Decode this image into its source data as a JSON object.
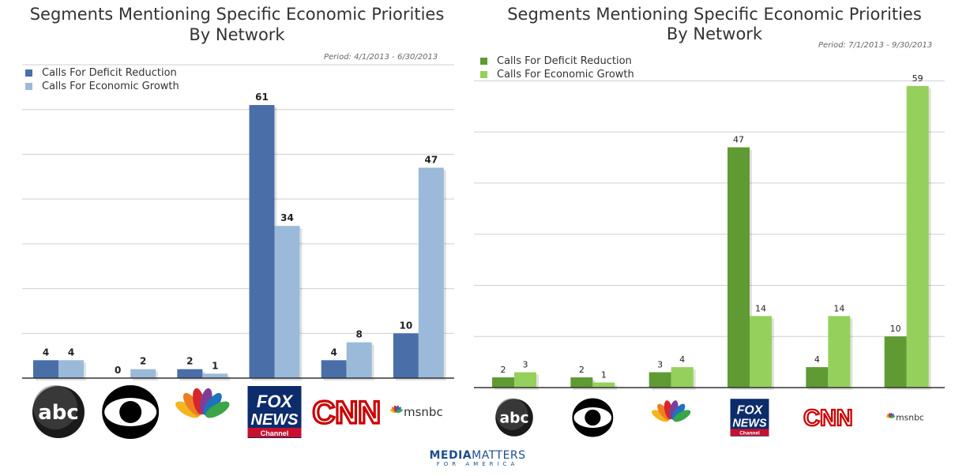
{
  "footer": {
    "brand_a": "MEDIA",
    "brand_b": "MATTERS",
    "sub": "FOR AMERICA"
  },
  "chart_data": [
    {
      "type": "bar",
      "title": "Segments Mentioning Specific Economic Priorities",
      "subtitle": "By Network",
      "period": "Period: 4/1/2013 - 6/30/2013",
      "categories": [
        "abc",
        "CBS",
        "NBC",
        "FOX NEWS Channel",
        "CNN",
        "msnbc"
      ],
      "series": [
        {
          "name": "Calls For Deficit Reduction",
          "color": "#4a6fa8",
          "values": [
            4,
            0,
            2,
            61,
            4,
            10
          ]
        },
        {
          "name": "Calls For Economic Growth",
          "color": "#9bbad9",
          "values": [
            4,
            2,
            1,
            34,
            8,
            47
          ]
        }
      ],
      "ylim": [
        0,
        70
      ],
      "grid": true
    },
    {
      "type": "bar",
      "title": "Segments Mentioning Specific Economic Priorities",
      "subtitle": "By Network",
      "period": "Period: 7/1/2013 - 9/30/2013",
      "categories": [
        "abc",
        "CBS",
        "NBC",
        "FOX NEWS Channel",
        "CNN",
        "msnbc"
      ],
      "series": [
        {
          "name": "Calls For Deficit Reduction",
          "color": "#5f9a33",
          "values": [
            2,
            2,
            3,
            47,
            4,
            10
          ]
        },
        {
          "name": "Calls For Economic Growth",
          "color": "#96d05c",
          "values": [
            3,
            1,
            4,
            14,
            14,
            59
          ]
        }
      ],
      "ylim": [
        0,
        65
      ],
      "grid": true
    }
  ]
}
